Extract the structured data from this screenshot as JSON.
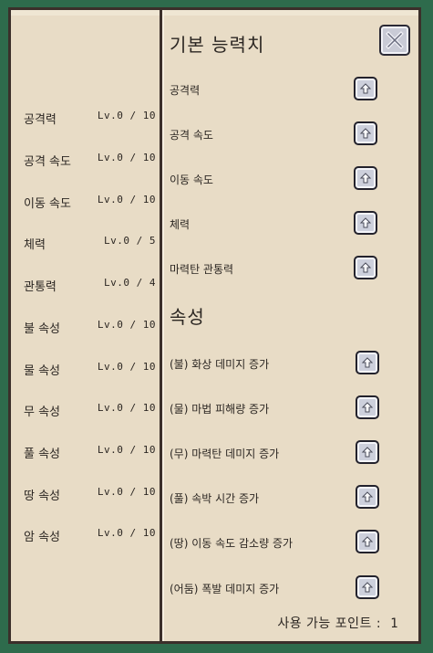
{
  "left_stats": [
    {
      "name": "공격력",
      "level": "Lv.0 / 10"
    },
    {
      "name": "공격 속도",
      "level": "Lv.0 / 10"
    },
    {
      "name": "이동 속도",
      "level": "Lv.0 / 10"
    },
    {
      "name": "체력",
      "level": "Lv.0 / 5"
    },
    {
      "name": "관통력",
      "level": "Lv.0 / 4"
    },
    {
      "name": "불 속성",
      "level": "Lv.0 / 10"
    },
    {
      "name": "물 속성",
      "level": "Lv.0 / 10"
    },
    {
      "name": "무 속성",
      "level": "Lv.0 / 10"
    },
    {
      "name": "풀 속성",
      "level": "Lv.0 / 10"
    },
    {
      "name": "땅 속성",
      "level": "Lv.0 / 10"
    },
    {
      "name": "암 속성",
      "level": "Lv.0 / 10"
    }
  ],
  "basic_section": {
    "title": "기본 능력치",
    "items": [
      "공격력",
      "공격 속도",
      "이동 속도",
      "체력",
      "마력탄 관통력"
    ]
  },
  "attribute_section": {
    "title": "속성",
    "items": [
      "(불) 화상 데미지 증가",
      "(물) 마법 피해량 증가",
      "(무) 마력탄 데미지 증가",
      "(풀) 속박 시간 증가",
      "(땅) 이동 속도 감소량 증가",
      "(어둠) 폭발 데미지 증가"
    ]
  },
  "footer": {
    "points_label": "사용 가능 포인트 :",
    "points_value": "1"
  },
  "icons": {
    "close": "close-x-icon",
    "upgrade": "up-arrow-icon"
  },
  "colors": {
    "background": "#2e6b4c",
    "panel": "#e8dcc6",
    "border": "#3b2f2a",
    "button": "#cdd0dc"
  }
}
